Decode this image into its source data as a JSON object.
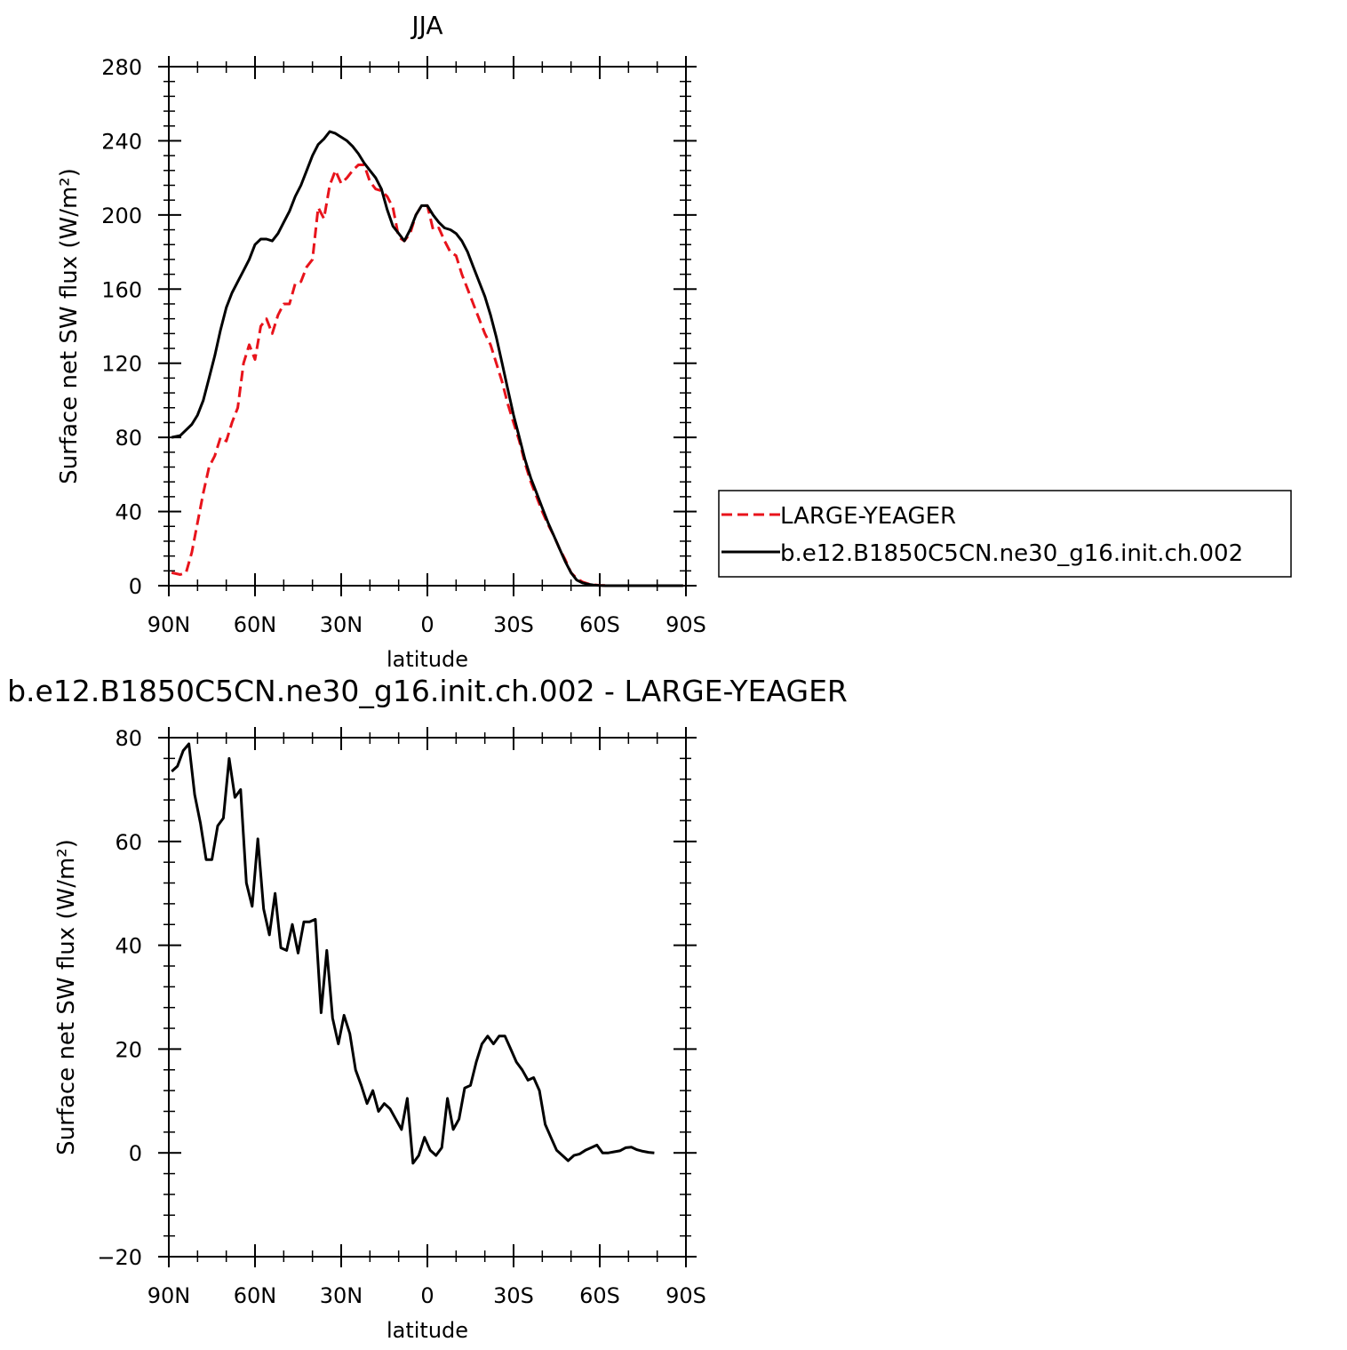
{
  "chart_data": [
    {
      "type": "line",
      "title": "JJA",
      "xlabel": "latitude",
      "ylabel": "Surface net SW flux (W/m²)",
      "xlim": [
        90,
        -90
      ],
      "ylim": [
        0,
        280
      ],
      "x_ticks": [
        {
          "value": 90,
          "label": "90N"
        },
        {
          "value": 60,
          "label": "60N"
        },
        {
          "value": 30,
          "label": "30N"
        },
        {
          "value": 0,
          "label": "0"
        },
        {
          "value": -30,
          "label": "30S"
        },
        {
          "value": -60,
          "label": "60S"
        },
        {
          "value": -90,
          "label": "90S"
        }
      ],
      "y_ticks": [
        0,
        40,
        80,
        120,
        160,
        200,
        240,
        280
      ],
      "legend": "right",
      "series": [
        {
          "name": "LARGE-YEAGER",
          "color": "#e8131b",
          "dash": "dashed",
          "x": [
            89,
            86,
            84,
            82,
            80,
            78,
            76,
            74,
            72,
            70,
            68,
            66,
            64,
            62,
            60,
            58,
            56,
            54,
            52,
            50,
            48,
            46,
            44,
            42,
            40,
            38,
            36,
            34,
            32,
            30,
            28,
            26,
            24,
            22,
            20,
            18,
            16,
            14,
            12,
            10,
            8,
            6,
            4,
            2,
            0,
            -2,
            -4,
            -6,
            -8,
            -10,
            -12,
            -14,
            -16,
            -18,
            -20,
            -22,
            -24,
            -26,
            -28,
            -30,
            -32,
            -34,
            -36,
            -38,
            -40,
            -42,
            -44,
            -46,
            -48,
            -50,
            -52,
            -54,
            -56,
            -58,
            -60,
            -62,
            -64,
            -66,
            -68,
            -70,
            -72,
            -74,
            -76,
            -78,
            -80,
            -82,
            -84,
            -86,
            -89
          ],
          "y": [
            7,
            6,
            7,
            18,
            34,
            50,
            64,
            70,
            80,
            78,
            88,
            96,
            120,
            130,
            122,
            140,
            144,
            136,
            146,
            152,
            152,
            163,
            164,
            172,
            176,
            204,
            198,
            216,
            224,
            217,
            220,
            224,
            227,
            227,
            218,
            214,
            213,
            210,
            204,
            188,
            186,
            190,
            200,
            205,
            205,
            192,
            193,
            186,
            180,
            178,
            168,
            160,
            152,
            144,
            136,
            130,
            120,
            110,
            98,
            88,
            78,
            66,
            56,
            48,
            40,
            33,
            27,
            20,
            14,
            7,
            4,
            2,
            1,
            0.5,
            0.2,
            0.1,
            0,
            0,
            0,
            0,
            0,
            0,
            0,
            0,
            0,
            0,
            0,
            0,
            0
          ]
        },
        {
          "name": "b.e12.B1850C5CN.ne30_g16.init.ch.002",
          "color": "#000000",
          "dash": "solid",
          "x": [
            89,
            86,
            84,
            82,
            80,
            78,
            76,
            74,
            72,
            70,
            68,
            66,
            64,
            62,
            60,
            58,
            56,
            54,
            52,
            50,
            48,
            46,
            44,
            42,
            40,
            38,
            36,
            34,
            32,
            30,
            28,
            26,
            24,
            22,
            20,
            18,
            16,
            14,
            12,
            10,
            8,
            6,
            4,
            2,
            0,
            -2,
            -4,
            -6,
            -8,
            -10,
            -12,
            -14,
            -16,
            -18,
            -20,
            -22,
            -24,
            -26,
            -28,
            -30,
            -32,
            -34,
            -36,
            -38,
            -40,
            -42,
            -44,
            -46,
            -48,
            -50,
            -52,
            -54,
            -56,
            -58,
            -60,
            -62,
            -64,
            -66,
            -68,
            -70,
            -72,
            -74,
            -76,
            -78,
            -80,
            -82,
            -84,
            -86,
            -89
          ],
          "y": [
            80,
            81,
            84,
            87,
            92,
            100,
            112,
            124,
            138,
            150,
            158,
            164,
            170,
            176,
            184,
            187,
            187,
            186,
            190,
            196,
            202,
            210,
            216,
            224,
            232,
            238,
            241,
            245,
            244,
            242,
            240,
            237,
            233,
            228,
            224,
            220,
            214,
            203,
            194,
            190,
            186,
            192,
            200,
            205,
            205,
            200,
            196,
            193,
            192,
            190,
            186,
            180,
            172,
            164,
            156,
            146,
            134,
            120,
            106,
            92,
            80,
            68,
            58,
            50,
            42,
            34,
            27,
            20,
            13,
            7,
            3,
            1.5,
            0.8,
            0.3,
            0.1,
            0,
            0,
            0,
            0,
            0,
            0,
            0,
            0,
            0,
            0,
            0,
            0,
            0,
            0
          ]
        }
      ]
    },
    {
      "type": "line",
      "title": "b.e12.B1850C5CN.ne30_g16.init.ch.002 - LARGE-YEAGER",
      "xlabel": "latitude",
      "ylabel": "Surface net SW flux (W/m²)",
      "xlim": [
        90,
        -90
      ],
      "ylim": [
        -20,
        80
      ],
      "x_ticks": [
        {
          "value": 90,
          "label": "90N"
        },
        {
          "value": 60,
          "label": "60N"
        },
        {
          "value": 30,
          "label": "30N"
        },
        {
          "value": 0,
          "label": "0"
        },
        {
          "value": -30,
          "label": "30S"
        },
        {
          "value": -60,
          "label": "60S"
        },
        {
          "value": -90,
          "label": "90S"
        }
      ],
      "y_ticks": [
        -20,
        0,
        20,
        40,
        60,
        80
      ],
      "series": [
        {
          "color": "#000000",
          "dash": "solid",
          "x": [
            89,
            87,
            85,
            83,
            81,
            79,
            77,
            75,
            73,
            71,
            69,
            67,
            65,
            63,
            61,
            59,
            57,
            55,
            53,
            51,
            49,
            47,
            45,
            43,
            41,
            39,
            37,
            35,
            33,
            31,
            29,
            27,
            25,
            23,
            21,
            19,
            17,
            15,
            13,
            11,
            9,
            7,
            5,
            3,
            1,
            -1,
            -3,
            -5,
            -7,
            -9,
            -11,
            -13,
            -15,
            -17,
            -19,
            -21,
            -23,
            -25,
            -27,
            -29,
            -31,
            -33,
            -35,
            -37,
            -39,
            -41,
            -43,
            -45,
            -47,
            -49,
            -51,
            -53,
            -55,
            -57,
            -59,
            -61,
            -63,
            -65,
            -67,
            -69,
            -71,
            -73,
            -75,
            -77,
            -79
          ],
          "y": [
            73.5,
            74.5,
            77.5,
            78.8,
            69,
            63.5,
            56.5,
            56.5,
            63,
            64.5,
            76,
            68.5,
            70,
            52,
            47.5,
            60.5,
            47,
            42,
            50,
            39.5,
            39,
            44,
            38.5,
            44.5,
            44.5,
            45,
            27,
            39,
            26,
            21,
            26.5,
            23,
            16,
            13,
            9.5,
            12,
            8,
            9.5,
            8.5,
            6.5,
            4.5,
            10.5,
            -2,
            -0.5,
            3,
            0.5,
            -0.5,
            1,
            10.5,
            4.5,
            6.5,
            12.5,
            13,
            17.5,
            21,
            22.5,
            21,
            22.5,
            22.5,
            20,
            17.5,
            16,
            14,
            14.5,
            12,
            5.5,
            3,
            0.5,
            -0.5,
            -1.5,
            -0.5,
            -0.2,
            0.5,
            1,
            1.5,
            0,
            0,
            0.2,
            0.4,
            1,
            1.1,
            0.6,
            0.3,
            0.1,
            0
          ]
        }
      ]
    }
  ]
}
